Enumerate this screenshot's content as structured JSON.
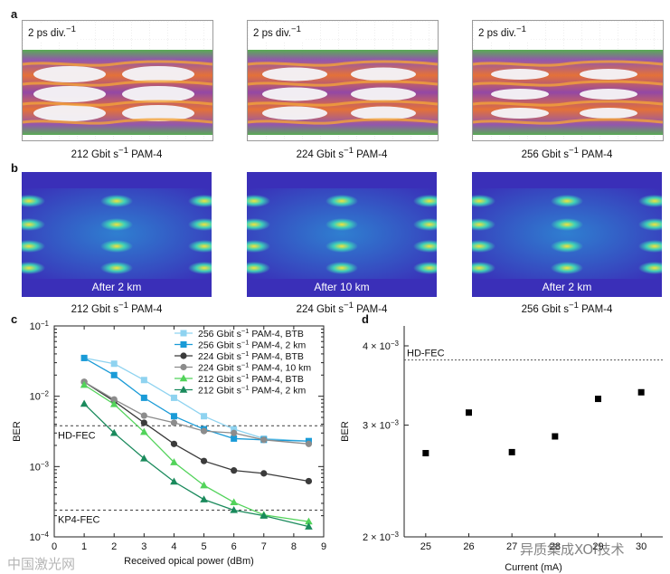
{
  "panel_labels": {
    "a": "a",
    "b": "b",
    "c": "c",
    "d": "d"
  },
  "eye_diagrams": {
    "scale": "2 ps div.",
    "scale_sup": "−1",
    "captions": [
      {
        "pre": "212 Gbit s",
        "sup": "−1",
        "post": " PAM-4"
      },
      {
        "pre": "224 Gbit s",
        "sup": "−1",
        "post": " PAM-4"
      },
      {
        "pre": "256 Gbit s",
        "sup": "−1",
        "post": " PAM-4"
      }
    ]
  },
  "simulated_eyes": {
    "distances": [
      "After 2 km",
      "After 10 km",
      "After 2 km"
    ],
    "captions": [
      {
        "pre": "212 Gbit s",
        "sup": "−1",
        "post": " PAM-4"
      },
      {
        "pre": "224 Gbit s",
        "sup": "−1",
        "post": " PAM-4"
      },
      {
        "pre": "256 Gbit s",
        "sup": "−1",
        "post": " PAM-4"
      }
    ]
  },
  "colors": {
    "c256btb": "#8fd3f0",
    "c256km": "#1a9bd7",
    "c224btb": "#3b3b3b",
    "c224km": "#8c8c8c",
    "c212btb": "#52d35a",
    "c212km": "#1a8a5c",
    "fec": "#555555"
  },
  "watermark": {
    "left": "中国激光网",
    "right": "异质集成XOI技术"
  },
  "chart_data": [
    {
      "type": "line",
      "panel": "c",
      "title": "",
      "xlabel": "Received opical power (dBm)",
      "ylabel": "BER",
      "xlim": [
        0,
        9
      ],
      "xticks": [
        0,
        1,
        2,
        3,
        4,
        5,
        6,
        7,
        8,
        9
      ],
      "yscale": "log",
      "ylim": [
        0.0001,
        0.1
      ],
      "yticks": [
        {
          "base": "10",
          "exp": "−1",
          "v": 0.1
        },
        {
          "base": "10",
          "exp": "−2",
          "v": 0.01
        },
        {
          "base": "10",
          "exp": "−3",
          "v": 0.001
        },
        {
          "base": "10",
          "exp": "−4",
          "v": 0.0001
        }
      ],
      "thresholds": [
        {
          "label": "HD-FEC",
          "value": 0.0038
        },
        {
          "label": "KP4-FEC",
          "value": 0.00024
        }
      ],
      "legend_position": "top-right",
      "series": [
        {
          "name": "256 Gbit s",
          "sup": "−1",
          "tail": " PAM-4, BTB",
          "marker": "square",
          "color_key": "c256btb",
          "x": [
            1,
            2,
            3,
            4,
            5,
            6,
            7,
            8.5
          ],
          "y": [
            0.035,
            0.029,
            0.017,
            0.0095,
            0.0052,
            0.0034,
            0.0025,
            0.0023
          ]
        },
        {
          "name": "256 Gbit s",
          "sup": "−1",
          "tail": " PAM-4, 2 km",
          "marker": "square",
          "color_key": "c256km",
          "x": [
            1,
            2,
            3,
            4,
            5,
            6,
            7,
            8.5
          ],
          "y": [
            0.035,
            0.02,
            0.0095,
            0.0052,
            0.0034,
            0.0025,
            0.0024,
            0.0023
          ]
        },
        {
          "name": "224 Gbit s",
          "sup": "−1",
          "tail": " PAM-4, BTB",
          "marker": "circle",
          "color_key": "c224btb",
          "x": [
            1,
            2,
            3,
            4,
            5,
            6,
            7,
            8.5
          ],
          "y": [
            0.016,
            0.0085,
            0.0042,
            0.0021,
            0.0012,
            0.00088,
            0.0008,
            0.00062
          ]
        },
        {
          "name": "224 Gbit s",
          "sup": "−1",
          "tail": " PAM-4, 10 km",
          "marker": "circle",
          "color_key": "c224km",
          "x": [
            1,
            2,
            3,
            4,
            5,
            6,
            7,
            8.5
          ],
          "y": [
            0.016,
            0.009,
            0.0053,
            0.0042,
            0.0032,
            0.003,
            0.0024,
            0.0021
          ]
        },
        {
          "name": "212 Gbit s",
          "sup": "−1",
          "tail": " PAM-4, BTB",
          "marker": "triangle",
          "color_key": "c212btb",
          "x": [
            1,
            2,
            3,
            4,
            5,
            6,
            7,
            8.5
          ],
          "y": [
            0.0145,
            0.0077,
            0.0031,
            0.00115,
            0.00054,
            0.00031,
            0.000205,
            0.000165
          ]
        },
        {
          "name": "212 Gbit s",
          "sup": "−1",
          "tail": " PAM-4, 2 km",
          "marker": "triangle",
          "color_key": "c212km",
          "x": [
            1,
            2,
            3,
            4,
            5,
            6,
            7,
            8.5
          ],
          "y": [
            0.0078,
            0.003,
            0.0013,
            0.00061,
            0.00034,
            0.00024,
            0.0002,
            0.00014
          ]
        }
      ]
    },
    {
      "type": "scatter",
      "panel": "d",
      "title": "",
      "xlabel": "Current (mA)",
      "ylabel": "BER",
      "xlim": [
        24.5,
        30.5
      ],
      "xticks": [
        "25",
        "26",
        "27",
        "28",
        "29",
        "30"
      ],
      "xtick_values": [
        25,
        26,
        27,
        28,
        29,
        30
      ],
      "yscale": "log",
      "ylim": [
        0.002,
        0.0043
      ],
      "yticks": [
        {
          "base": "4 × 10",
          "exp": "−3",
          "v": 0.004
        },
        {
          "base": "3 × 10",
          "exp": "−3",
          "v": 0.003
        },
        {
          "base": "2 × 10",
          "exp": "−3",
          "v": 0.002
        }
      ],
      "thresholds": [
        {
          "label": "HD-FEC",
          "value": 0.0038
        }
      ],
      "series": [
        {
          "name": "BER",
          "marker": "square",
          "color": "#000000",
          "x": [
            25,
            26,
            27,
            28,
            29,
            30
          ],
          "y": [
            0.00271,
            0.00314,
            0.00272,
            0.00288,
            0.0033,
            0.00338
          ]
        }
      ]
    }
  ]
}
